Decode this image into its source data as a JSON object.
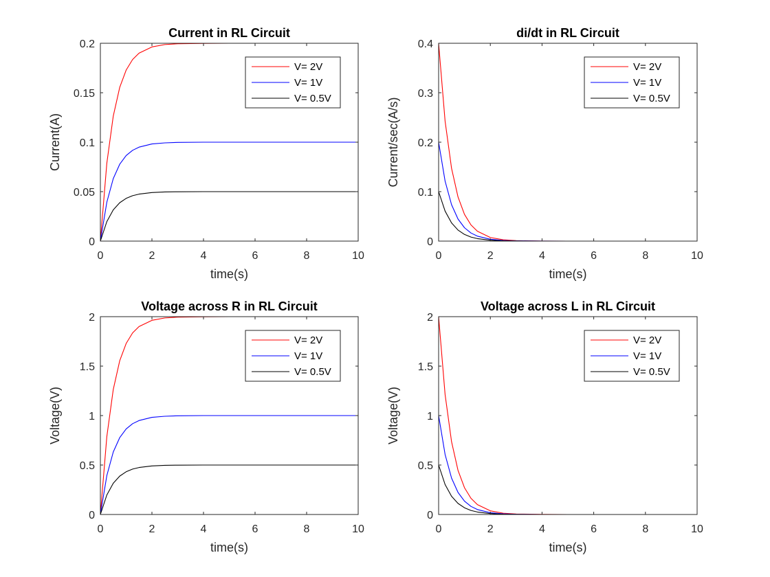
{
  "chart_data": [
    {
      "type": "line",
      "title": "Current in RL Circuit",
      "xlabel": "time(s)",
      "ylabel": "Current(A)",
      "xlim": [
        0,
        10
      ],
      "ylim": [
        0,
        0.2
      ],
      "xticks": [
        0,
        2,
        4,
        6,
        8,
        10
      ],
      "xtick_labels": [
        "0",
        "2",
        "4",
        "6",
        "8",
        "10"
      ],
      "yticks": [
        0,
        0.05,
        0.1,
        0.15,
        0.2
      ],
      "ytick_labels": [
        "0",
        "0.05",
        "0.1",
        "0.15",
        "0.2"
      ],
      "legend_position": "top-right",
      "series": [
        {
          "name": "V= 2V",
          "color": "#ff0000",
          "x": [
            0,
            0.25,
            0.5,
            0.75,
            1,
            1.25,
            1.5,
            2,
            2.5,
            3,
            4,
            5,
            6,
            8,
            10
          ],
          "y": [
            0,
            0.0787,
            0.1264,
            0.1554,
            0.1729,
            0.1836,
            0.19,
            0.1963,
            0.1987,
            0.1995,
            0.1999,
            0.2,
            0.2,
            0.2,
            0.2
          ]
        },
        {
          "name": "V= 1V",
          "color": "#0000ff",
          "x": [
            0,
            0.25,
            0.5,
            0.75,
            1,
            1.25,
            1.5,
            2,
            2.5,
            3,
            4,
            5,
            6,
            8,
            10
          ],
          "y": [
            0,
            0.0393,
            0.0632,
            0.0777,
            0.0865,
            0.0918,
            0.095,
            0.0982,
            0.0993,
            0.0998,
            0.1,
            0.1,
            0.1,
            0.1,
            0.1
          ]
        },
        {
          "name": "V= 0.5V",
          "color": "#000000",
          "x": [
            0,
            0.25,
            0.5,
            0.75,
            1,
            1.25,
            1.5,
            2,
            2.5,
            3,
            4,
            5,
            6,
            8,
            10
          ],
          "y": [
            0,
            0.0197,
            0.0316,
            0.0388,
            0.0432,
            0.0459,
            0.0475,
            0.0491,
            0.0497,
            0.0499,
            0.05,
            0.05,
            0.05,
            0.05,
            0.05
          ]
        }
      ]
    },
    {
      "type": "line",
      "title": "di/dt in RL Circuit",
      "xlabel": "time(s)",
      "ylabel": "Current/sec(A/s)",
      "xlim": [
        0,
        10
      ],
      "ylim": [
        0,
        0.4
      ],
      "xticks": [
        0,
        2,
        4,
        6,
        8,
        10
      ],
      "xtick_labels": [
        "0",
        "2",
        "4",
        "6",
        "8",
        "10"
      ],
      "yticks": [
        0,
        0.1,
        0.2,
        0.3,
        0.4
      ],
      "ytick_labels": [
        "0",
        "0.1",
        "0.2",
        "0.3",
        "0.4"
      ],
      "legend_position": "top-right",
      "series": [
        {
          "name": "V= 2V",
          "color": "#ff0000",
          "x": [
            0,
            0.25,
            0.5,
            0.75,
            1,
            1.25,
            1.5,
            2,
            2.5,
            3,
            4,
            5,
            6,
            8,
            10
          ],
          "y": [
            0.4,
            0.2426,
            0.1472,
            0.0893,
            0.0541,
            0.0328,
            0.0199,
            0.0073,
            0.0027,
            0.001,
            0.0001,
            0,
            0,
            0,
            0
          ]
        },
        {
          "name": "V= 1V",
          "color": "#0000ff",
          "x": [
            0,
            0.25,
            0.5,
            0.75,
            1,
            1.25,
            1.5,
            2,
            2.5,
            3,
            4,
            5,
            6,
            8,
            10
          ],
          "y": [
            0.2,
            0.1213,
            0.0736,
            0.0446,
            0.0271,
            0.0164,
            0.01,
            0.0037,
            0.0013,
            0.0005,
            0.0001,
            0,
            0,
            0,
            0
          ]
        },
        {
          "name": "V= 0.5V",
          "color": "#000000",
          "x": [
            0,
            0.25,
            0.5,
            0.75,
            1,
            1.25,
            1.5,
            2,
            2.5,
            3,
            4,
            5,
            6,
            8,
            10
          ],
          "y": [
            0.1,
            0.0607,
            0.0368,
            0.0223,
            0.0135,
            0.0082,
            0.005,
            0.0018,
            0.0007,
            0.0002,
            0,
            0,
            0,
            0,
            0
          ]
        }
      ]
    },
    {
      "type": "line",
      "title": "Voltage across R in RL Circuit",
      "xlabel": "time(s)",
      "ylabel": "Voltage(V)",
      "xlim": [
        0,
        10
      ],
      "ylim": [
        0,
        2
      ],
      "xticks": [
        0,
        2,
        4,
        6,
        8,
        10
      ],
      "xtick_labels": [
        "0",
        "2",
        "4",
        "6",
        "8",
        "10"
      ],
      "yticks": [
        0,
        0.5,
        1,
        1.5,
        2
      ],
      "ytick_labels": [
        "0",
        "0.5",
        "1",
        "1.5",
        "2"
      ],
      "legend_position": "top-right",
      "series": [
        {
          "name": "V= 2V",
          "color": "#ff0000",
          "x": [
            0,
            0.25,
            0.5,
            0.75,
            1,
            1.25,
            1.5,
            2,
            2.5,
            3,
            4,
            5,
            6,
            8,
            10
          ],
          "y": [
            0,
            0.787,
            1.264,
            1.554,
            1.729,
            1.836,
            1.9,
            1.963,
            1.987,
            1.995,
            1.999,
            2,
            2,
            2,
            2
          ]
        },
        {
          "name": "V= 1V",
          "color": "#0000ff",
          "x": [
            0,
            0.25,
            0.5,
            0.75,
            1,
            1.25,
            1.5,
            2,
            2.5,
            3,
            4,
            5,
            6,
            8,
            10
          ],
          "y": [
            0,
            0.393,
            0.632,
            0.777,
            0.865,
            0.918,
            0.95,
            0.982,
            0.993,
            0.998,
            1,
            1,
            1,
            1,
            1
          ]
        },
        {
          "name": "V= 0.5V",
          "color": "#000000",
          "x": [
            0,
            0.25,
            0.5,
            0.75,
            1,
            1.25,
            1.5,
            2,
            2.5,
            3,
            4,
            5,
            6,
            8,
            10
          ],
          "y": [
            0,
            0.197,
            0.316,
            0.388,
            0.432,
            0.459,
            0.475,
            0.491,
            0.497,
            0.499,
            0.5,
            0.5,
            0.5,
            0.5,
            0.5
          ]
        }
      ]
    },
    {
      "type": "line",
      "title": "Voltage across L in RL Circuit",
      "xlabel": "time(s)",
      "ylabel": "Voltage(V)",
      "xlim": [
        0,
        10
      ],
      "ylim": [
        0,
        2
      ],
      "xticks": [
        0,
        2,
        4,
        6,
        8,
        10
      ],
      "xtick_labels": [
        "0",
        "2",
        "4",
        "6",
        "8",
        "10"
      ],
      "yticks": [
        0,
        0.5,
        1,
        1.5,
        2
      ],
      "ytick_labels": [
        "0",
        "0.5",
        "1",
        "1.5",
        "2"
      ],
      "legend_position": "top-right",
      "series": [
        {
          "name": "V= 2V",
          "color": "#ff0000",
          "x": [
            0,
            0.25,
            0.5,
            0.75,
            1,
            1.25,
            1.5,
            2,
            2.5,
            3,
            4,
            5,
            6,
            8,
            10
          ],
          "y": [
            2,
            1.213,
            0.736,
            0.446,
            0.271,
            0.164,
            0.1,
            0.037,
            0.013,
            0.005,
            0.001,
            0,
            0,
            0,
            0
          ]
        },
        {
          "name": "V= 1V",
          "color": "#0000ff",
          "x": [
            0,
            0.25,
            0.5,
            0.75,
            1,
            1.25,
            1.5,
            2,
            2.5,
            3,
            4,
            5,
            6,
            8,
            10
          ],
          "y": [
            1,
            0.607,
            0.368,
            0.223,
            0.135,
            0.082,
            0.05,
            0.018,
            0.007,
            0.002,
            0,
            0,
            0,
            0,
            0
          ]
        },
        {
          "name": "V= 0.5V",
          "color": "#000000",
          "x": [
            0,
            0.25,
            0.5,
            0.75,
            1,
            1.25,
            1.5,
            2,
            2.5,
            3,
            4,
            5,
            6,
            8,
            10
          ],
          "y": [
            0.5,
            0.303,
            0.184,
            0.112,
            0.068,
            0.041,
            0.025,
            0.009,
            0.003,
            0.001,
            0,
            0,
            0,
            0,
            0
          ]
        }
      ]
    }
  ]
}
